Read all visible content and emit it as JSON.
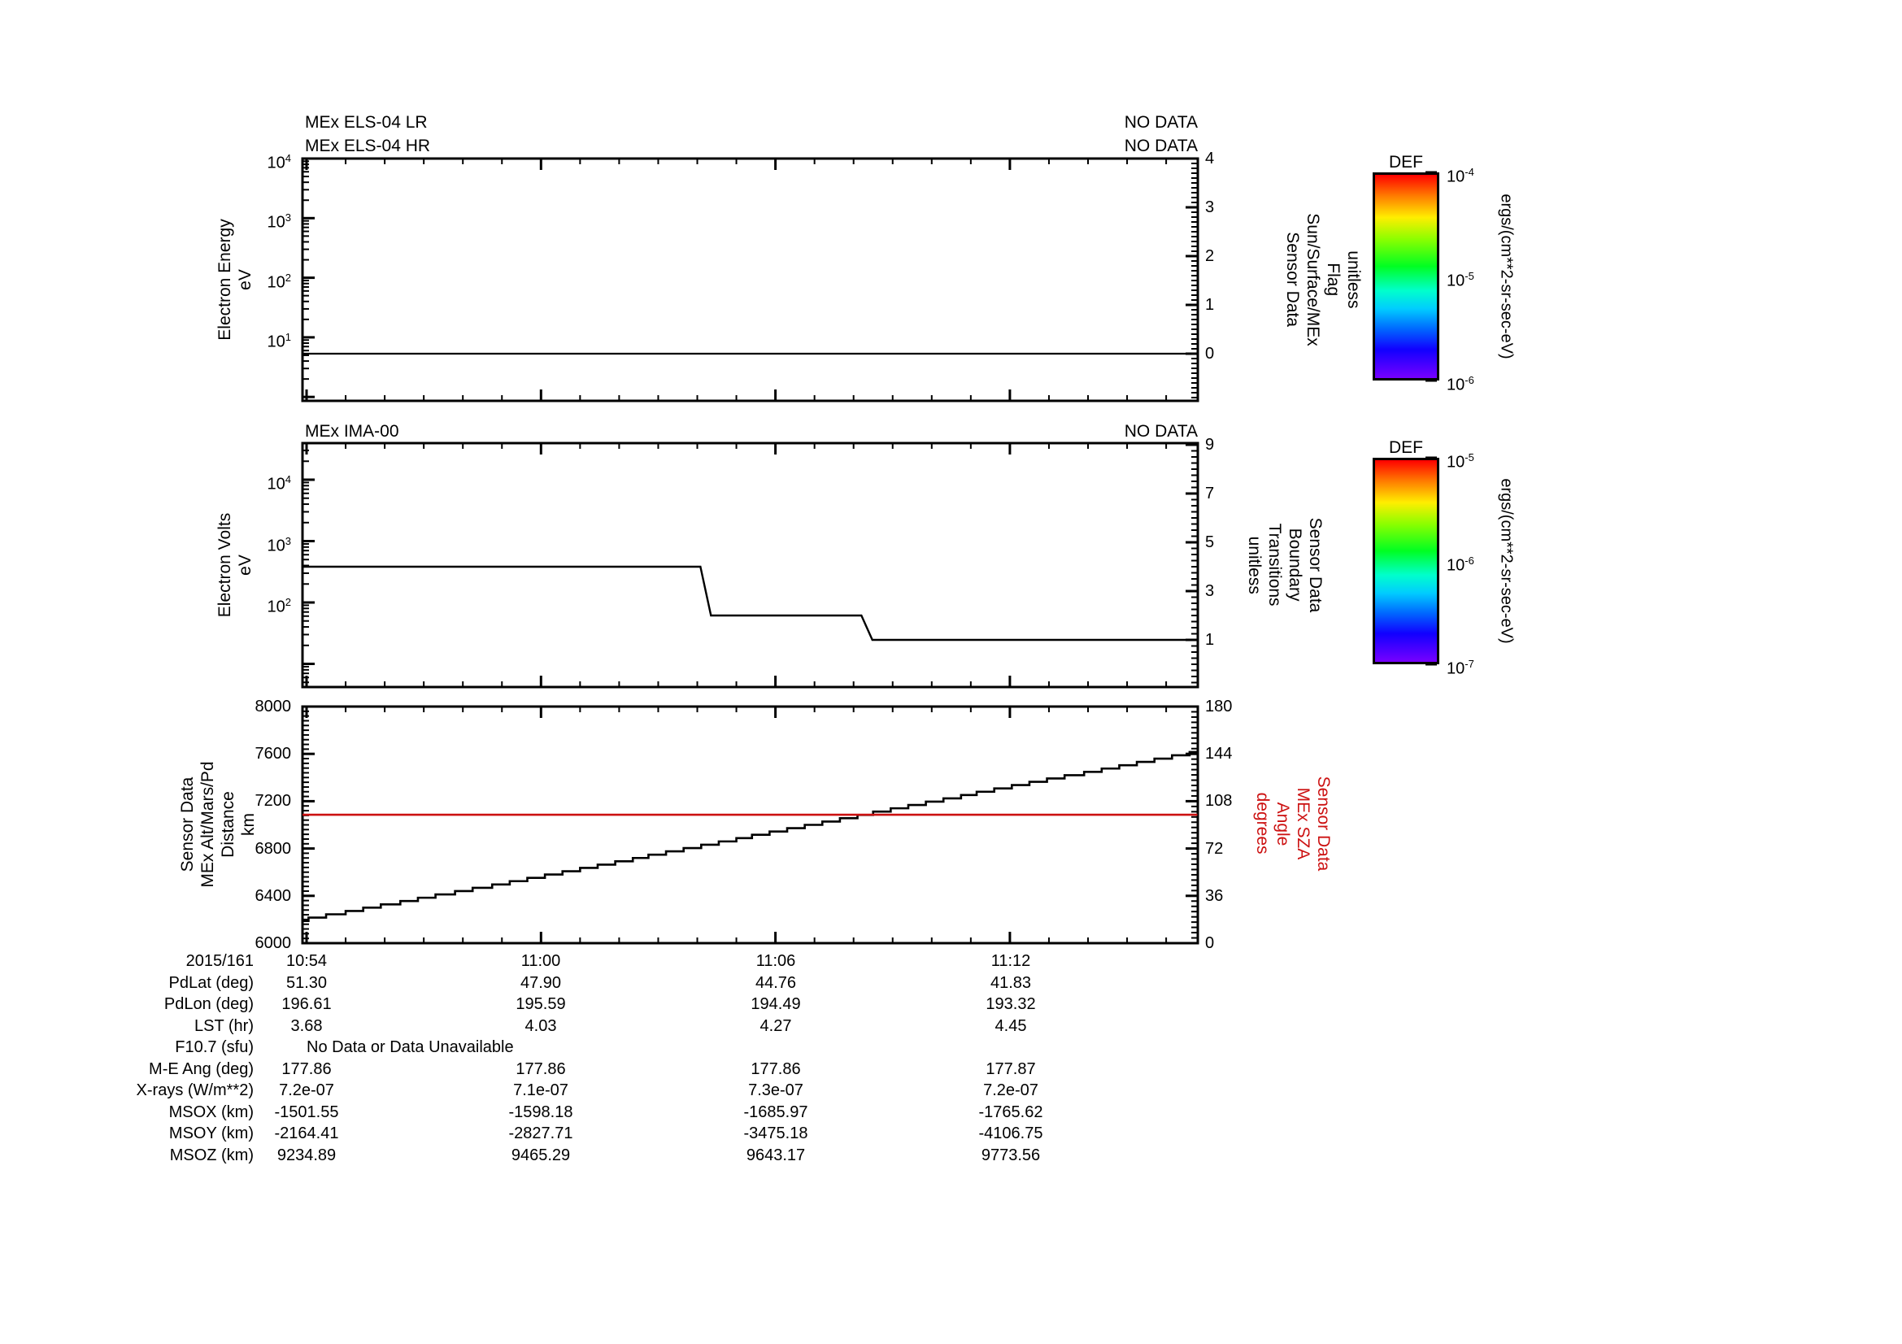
{
  "colors": {
    "background": "#ffffff",
    "line_black": "#000000",
    "line_red": "#cc1111"
  },
  "panels": {
    "els": {
      "title_lr": "MEx ELS-04 LR",
      "title_hr": "MEx ELS-04 HR",
      "no_data_lr": "NO DATA",
      "no_data_hr": "NO DATA",
      "left_label": "Electron Energy\neV",
      "right_label": "Sensor Data\nSun/Surface/MEx\nFlag\nunitless"
    },
    "ima": {
      "title": "MEx IMA-00",
      "no_data": "NO DATA",
      "left_label": "Electron Volts\neV",
      "right_label": "unitless\nTransitions\nBoundary\nSensor Data"
    },
    "alt": {
      "left_label": "Sensor Data\nMEx Alt/Mars/Pd\nDistance\nkm",
      "right_label": "degrees\nAngle\nMEx SZA\nSensor Data"
    }
  },
  "colorbars": [
    {
      "title": "DEF",
      "unit": "ergs/(cm**2-sr-sec-eV)",
      "tick_labels": [
        "10^-4",
        "10^-5",
        "10^-6"
      ]
    },
    {
      "title": "DEF",
      "unit": "ergs/(cm**2-sr-sec-eV)",
      "tick_labels": [
        "10^-5",
        "10^-6",
        "10^-7"
      ]
    }
  ],
  "table": {
    "rows": [
      {
        "label": "2015/161",
        "values": [
          "10:54",
          "11:00",
          "11:06",
          "11:12"
        ]
      },
      {
        "label": "PdLat (deg)",
        "values": [
          "51.30",
          "47.90",
          "44.76",
          "41.83"
        ]
      },
      {
        "label": "PdLon (deg)",
        "values": [
          "196.61",
          "195.59",
          "194.49",
          "193.32"
        ]
      },
      {
        "label": "LST (hr)",
        "values": [
          "3.68",
          "4.03",
          "4.27",
          "4.45"
        ]
      },
      {
        "label": "F10.7 (sfu)",
        "span": "No Data or Data Unavailable"
      },
      {
        "label": "M-E Ang (deg)",
        "values": [
          "177.86",
          "177.86",
          "177.86",
          "177.87"
        ]
      },
      {
        "label": "X-rays (W/m**2)",
        "values": [
          "7.2e-07",
          "7.1e-07",
          "7.3e-07",
          "7.2e-07"
        ]
      },
      {
        "label": "MSOX (km)",
        "values": [
          "-1501.55",
          "-1598.18",
          "-1685.97",
          "-1765.62"
        ]
      },
      {
        "label": "MSOY (km)",
        "values": [
          "-2164.41",
          "-2827.71",
          "-3475.18",
          "-4106.75"
        ]
      },
      {
        "label": "MSOZ (km)",
        "values": [
          "9234.89",
          "9465.29",
          "9643.17",
          "9773.56"
        ]
      }
    ]
  },
  "chart_data": [
    {
      "type": "line",
      "panel": "top",
      "titles": [
        "MEx ELS-04 LR",
        "MEx ELS-04 HR"
      ],
      "status": [
        "NO DATA",
        "NO DATA"
      ],
      "x": {
        "date": "2015/161",
        "major_tick_labels": [
          "10:54",
          "11:00",
          "11:06",
          "11:12"
        ],
        "major_tick_min": [
          0,
          6,
          12,
          18
        ],
        "minor_step_min": 1,
        "start_min": 0,
        "end_min": 22.8
      },
      "y_left": {
        "label": "Electron Energy (eV)",
        "scale": "log",
        "tick_labels": [
          "10^4",
          "10^3",
          "10^2",
          "10^1"
        ],
        "tick_logs": [
          4,
          3,
          2,
          1
        ]
      },
      "y_right": {
        "label": "Sensor Data Sun/Surface/MEx Flag (unitless)",
        "tick_labels": [
          "4",
          "3",
          "2",
          "1",
          "0"
        ],
        "tick_values": [
          4,
          3,
          2,
          1,
          0
        ],
        "minor_step": 0.1,
        "range": [
          -0.97,
          4
        ]
      },
      "series": [
        {
          "name": "sun-surface-mex-flag",
          "axis": "right",
          "color": "#000000",
          "points_min_value": [
            [
              0,
              0
            ],
            [
              22.8,
              0
            ]
          ]
        }
      ]
    },
    {
      "type": "line",
      "panel": "middle",
      "title": "MEx IMA-00",
      "status": [
        "NO DATA"
      ],
      "y_left": {
        "label": "Electron Volts (eV)",
        "scale": "log",
        "tick_labels": [
          "10^4",
          "10^3",
          "10^2"
        ],
        "tick_logs": [
          4,
          3,
          2
        ]
      },
      "y_right": {
        "label": "Sensor Data Boundary Transitions (unitless)",
        "tick_labels": [
          "9",
          "7",
          "5",
          "3",
          "1"
        ],
        "tick_values": [
          9,
          7,
          5,
          3,
          1
        ],
        "minor_step": 0.25,
        "range": [
          -0.93,
          9.07
        ]
      },
      "series": [
        {
          "name": "boundary-transitions",
          "axis": "right",
          "color": "#000000",
          "points_min_value": [
            [
              0,
              4
            ],
            [
              10.08,
              4
            ],
            [
              10.35,
              2
            ],
            [
              14.2,
              2
            ],
            [
              14.48,
              1
            ],
            [
              22.8,
              1
            ]
          ]
        }
      ]
    },
    {
      "type": "line",
      "panel": "bottom",
      "x": {
        "date": "2015/161",
        "major_tick_labels": [
          "10:54",
          "11:00",
          "11:06",
          "11:12"
        ],
        "major_tick_min": [
          0,
          6,
          12,
          18
        ],
        "minor_step_min": 1
      },
      "y_left": {
        "label": "Sensor Data MEx Alt/Mars/Pd Distance (km)",
        "tick_labels": [
          "8000",
          "7600",
          "7200",
          "6800",
          "6400",
          "6000"
        ],
        "tick_values": [
          8000,
          7600,
          7200,
          6800,
          6400,
          6000
        ],
        "minor_step": 40,
        "range": [
          6000,
          8000
        ]
      },
      "y_right": {
        "label": "Sensor Data MEx SZA Angle (degrees)",
        "tick_labels": [
          "180",
          "144",
          "108",
          "72",
          "36",
          "0"
        ],
        "tick_values": [
          180,
          144,
          108,
          72,
          36,
          0
        ],
        "minor_step": 4,
        "range": [
          0,
          180
        ]
      },
      "series": [
        {
          "name": "mex-altitude",
          "axis": "left",
          "color": "#000000",
          "style": "staircase",
          "quantize_km": 28,
          "points_min_value": [
            [
              0,
              6200
            ],
            [
              6,
              6560
            ],
            [
              12,
              6940
            ],
            [
              18,
              7320
            ],
            [
              22.8,
              7615
            ]
          ]
        },
        {
          "name": "mex-sza",
          "axis": "right",
          "color": "#cc1111",
          "points_min_value": [
            [
              0,
              97.7
            ],
            [
              22.8,
              97.7
            ]
          ]
        }
      ]
    }
  ]
}
